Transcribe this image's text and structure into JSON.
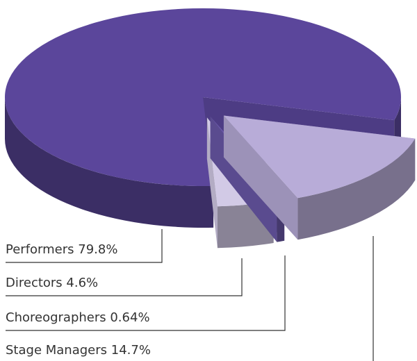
{
  "chart_data": {
    "type": "pie3d",
    "categories": [
      "Performers",
      "Directors",
      "Choreographers",
      "Stage Managers"
    ],
    "values": [
      79.8,
      4.6,
      0.64,
      14.7
    ],
    "value_labels": [
      "79.8%",
      "4.6%",
      "0.64%",
      "14.7%"
    ],
    "colors": [
      "#5b469b",
      "#d2cae6",
      "#6a58a8",
      "#b8acd8"
    ]
  }
}
